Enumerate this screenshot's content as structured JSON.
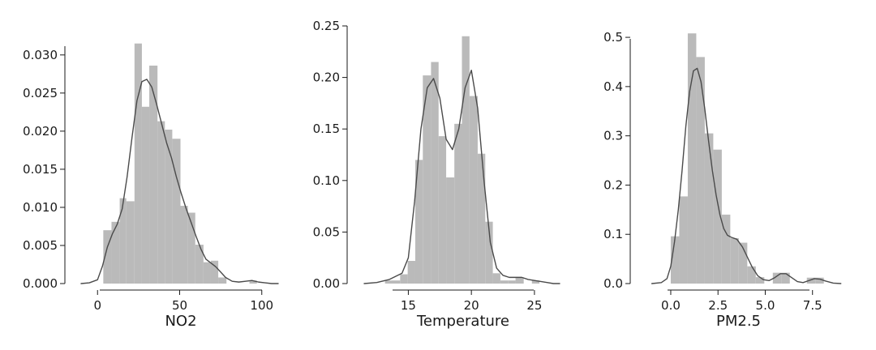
{
  "chart_data": [
    {
      "type": "bar",
      "xlabel": "NO2",
      "ylabel": "",
      "xlim": [
        -10,
        110
      ],
      "ylim": [
        0,
        0.032
      ],
      "xticks": [
        0,
        50,
        100
      ],
      "xtick_labels": [
        "0",
        "50",
        "100"
      ],
      "yticks": [
        0.0,
        0.005,
        0.01,
        0.015,
        0.02,
        0.025,
        0.03
      ],
      "ytick_labels": [
        "0.000",
        "0.005",
        "0.010",
        "0.015",
        "0.020",
        "0.025",
        "0.030"
      ],
      "grid": false,
      "bins": [
        {
          "x0": 3.5,
          "x1": 8.5,
          "value": 0.007
        },
        {
          "x0": 8.5,
          "x1": 13.5,
          "value": 0.0081
        },
        {
          "x0": 13.5,
          "x1": 17.5,
          "value": 0.0112
        },
        {
          "x0": 17.5,
          "x1": 22.5,
          "value": 0.0108
        },
        {
          "x0": 22.5,
          "x1": 27,
          "value": 0.0315
        },
        {
          "x0": 27,
          "x1": 31.5,
          "value": 0.0232
        },
        {
          "x0": 31.5,
          "x1": 36.5,
          "value": 0.0286
        },
        {
          "x0": 36.5,
          "x1": 41,
          "value": 0.0213
        },
        {
          "x0": 41,
          "x1": 45.5,
          "value": 0.0202
        },
        {
          "x0": 45.5,
          "x1": 50.5,
          "value": 0.019
        },
        {
          "x0": 50.5,
          "x1": 55,
          "value": 0.0102
        },
        {
          "x0": 55,
          "x1": 59.5,
          "value": 0.0093
        },
        {
          "x0": 59.5,
          "x1": 64.5,
          "value": 0.0051
        },
        {
          "x0": 64.5,
          "x1": 69,
          "value": 0.0028
        },
        {
          "x0": 69,
          "x1": 73.5,
          "value": 0.003
        },
        {
          "x0": 73.5,
          "x1": 78.5,
          "value": 0.0008
        },
        {
          "x0": 92.5,
          "x1": 97,
          "value": 0.0004
        }
      ],
      "kde": {
        "x": [
          -10,
          -5,
          0,
          3,
          6,
          9,
          12,
          15,
          18,
          21,
          24,
          27,
          30,
          33,
          36,
          39,
          42,
          45,
          48,
          51,
          54,
          57,
          60,
          63,
          66,
          69,
          72,
          75,
          78,
          82,
          86,
          90,
          94,
          98,
          102,
          106,
          110
        ],
        "y": [
          0.0,
          0.0001,
          0.0005,
          0.0023,
          0.0048,
          0.0065,
          0.0078,
          0.0098,
          0.014,
          0.0192,
          0.024,
          0.0265,
          0.0268,
          0.0258,
          0.0235,
          0.021,
          0.0185,
          0.0165,
          0.014,
          0.0118,
          0.0098,
          0.008,
          0.0062,
          0.0045,
          0.0032,
          0.0027,
          0.0022,
          0.0015,
          0.0008,
          0.0003,
          0.0002,
          0.0003,
          0.0004,
          0.0002,
          0.0001,
          0.0,
          0.0
        ]
      }
    },
    {
      "type": "bar",
      "xlabel": "Temperature",
      "ylabel": "",
      "xlim": [
        11.5,
        27.0
      ],
      "ylim": [
        0,
        0.25
      ],
      "xticks": [
        15,
        20,
        25
      ],
      "xtick_labels": [
        "15",
        "20",
        "25"
      ],
      "yticks": [
        0.0,
        0.05,
        0.1,
        0.15,
        0.2,
        0.25
      ],
      "ytick_labels": [
        "0.00",
        "0.05",
        "0.10",
        "0.15",
        "0.20",
        "0.25"
      ],
      "grid": false,
      "bins": [
        {
          "x0": 13.15,
          "x1": 13.75,
          "value": 0.003
        },
        {
          "x0": 13.75,
          "x1": 14.35,
          "value": 0.003
        },
        {
          "x0": 14.35,
          "x1": 14.95,
          "value": 0.009
        },
        {
          "x0": 14.95,
          "x1": 15.55,
          "value": 0.022
        },
        {
          "x0": 15.55,
          "x1": 16.15,
          "value": 0.12
        },
        {
          "x0": 16.15,
          "x1": 16.8,
          "value": 0.202
        },
        {
          "x0": 16.8,
          "x1": 17.4,
          "value": 0.215
        },
        {
          "x0": 17.4,
          "x1": 18.0,
          "value": 0.143
        },
        {
          "x0": 18.0,
          "x1": 18.65,
          "value": 0.103
        },
        {
          "x0": 18.65,
          "x1": 19.25,
          "value": 0.155
        },
        {
          "x0": 19.25,
          "x1": 19.85,
          "value": 0.24
        },
        {
          "x0": 19.85,
          "x1": 20.5,
          "value": 0.182
        },
        {
          "x0": 20.5,
          "x1": 21.1,
          "value": 0.126
        },
        {
          "x0": 21.1,
          "x1": 21.7,
          "value": 0.06
        },
        {
          "x0": 21.7,
          "x1": 22.3,
          "value": 0.01
        },
        {
          "x0": 22.3,
          "x1": 22.9,
          "value": 0.003
        },
        {
          "x0": 22.9,
          "x1": 23.5,
          "value": 0.003
        },
        {
          "x0": 23.5,
          "x1": 24.15,
          "value": 0.006
        },
        {
          "x0": 24.8,
          "x1": 25.4,
          "value": 0.003
        }
      ],
      "kde": {
        "x": [
          11.5,
          12.5,
          13.5,
          14.5,
          15.0,
          15.5,
          16.0,
          16.5,
          17.0,
          17.5,
          18.0,
          18.5,
          19.0,
          19.5,
          20.0,
          20.5,
          21.0,
          21.5,
          22.0,
          22.5,
          23.0,
          23.5,
          24.0,
          24.5,
          25.0,
          25.5,
          26.0,
          26.5,
          27.0
        ],
        "y": [
          0.0,
          0.001,
          0.004,
          0.01,
          0.025,
          0.08,
          0.15,
          0.19,
          0.199,
          0.18,
          0.14,
          0.13,
          0.15,
          0.19,
          0.207,
          0.17,
          0.1,
          0.04,
          0.015,
          0.008,
          0.006,
          0.006,
          0.006,
          0.004,
          0.003,
          0.002,
          0.001,
          0.0,
          0.0
        ]
      }
    },
    {
      "type": "bar",
      "xlabel": "PM2.5",
      "ylabel": "",
      "xlim": [
        -1.2,
        9.1
      ],
      "ylim": [
        0,
        0.51
      ],
      "xticks": [
        0.0,
        2.5,
        5.0,
        7.5
      ],
      "xtick_labels": [
        "0.0",
        "2.5",
        "5.0",
        "7.5"
      ],
      "yticks": [
        0.0,
        0.1,
        0.2,
        0.3,
        0.4,
        0.5
      ],
      "ytick_labels": [
        "0.0",
        "0.1",
        "0.2",
        "0.3",
        "0.4",
        "0.5"
      ],
      "grid": false,
      "bins": [
        {
          "x0": 0.0,
          "x1": 0.45,
          "value": 0.096
        },
        {
          "x0": 0.45,
          "x1": 0.9,
          "value": 0.177
        },
        {
          "x0": 0.9,
          "x1": 1.35,
          "value": 0.508
        },
        {
          "x0": 1.35,
          "x1": 1.8,
          "value": 0.46
        },
        {
          "x0": 1.8,
          "x1": 2.25,
          "value": 0.305
        },
        {
          "x0": 2.25,
          "x1": 2.7,
          "value": 0.272
        },
        {
          "x0": 2.7,
          "x1": 3.15,
          "value": 0.14
        },
        {
          "x0": 3.15,
          "x1": 3.6,
          "value": 0.092
        },
        {
          "x0": 3.6,
          "x1": 4.05,
          "value": 0.083
        },
        {
          "x0": 4.05,
          "x1": 4.5,
          "value": 0.035
        },
        {
          "x0": 4.5,
          "x1": 4.95,
          "value": 0.013
        },
        {
          "x0": 5.4,
          "x1": 5.85,
          "value": 0.022
        },
        {
          "x0": 5.85,
          "x1": 6.3,
          "value": 0.022
        },
        {
          "x0": 7.2,
          "x1": 7.65,
          "value": 0.012
        },
        {
          "x0": 7.65,
          "x1": 8.1,
          "value": 0.012
        }
      ],
      "kde": {
        "x": [
          -1.0,
          -0.5,
          -0.2,
          0.0,
          0.2,
          0.4,
          0.6,
          0.8,
          1.0,
          1.2,
          1.4,
          1.6,
          1.8,
          2.0,
          2.2,
          2.4,
          2.6,
          2.8,
          3.0,
          3.2,
          3.5,
          3.8,
          4.0,
          4.3,
          4.6,
          4.9,
          5.2,
          5.5,
          5.8,
          6.1,
          6.4,
          6.7,
          7.0,
          7.3,
          7.6,
          7.9,
          8.2,
          8.6,
          9.0
        ],
        "y": [
          0.0,
          0.002,
          0.01,
          0.035,
          0.085,
          0.15,
          0.23,
          0.32,
          0.39,
          0.432,
          0.437,
          0.41,
          0.355,
          0.29,
          0.23,
          0.18,
          0.14,
          0.112,
          0.098,
          0.094,
          0.09,
          0.074,
          0.058,
          0.034,
          0.016,
          0.008,
          0.006,
          0.012,
          0.02,
          0.02,
          0.012,
          0.004,
          0.002,
          0.006,
          0.01,
          0.009,
          0.005,
          0.001,
          0.0
        ]
      }
    }
  ],
  "colors": {
    "bar": "#bababa",
    "kde_line": "#4a4a4a",
    "axis": "#1a1a1a"
  }
}
